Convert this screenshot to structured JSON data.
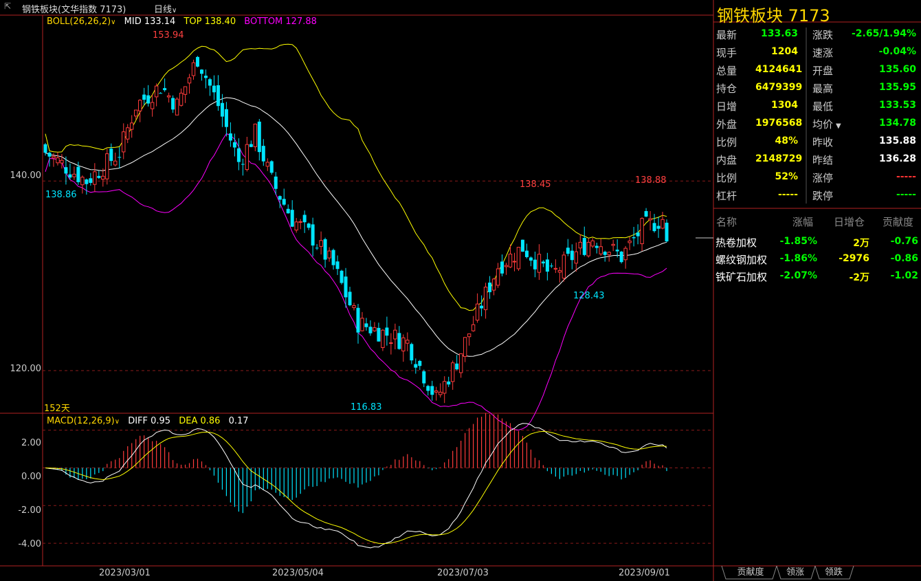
{
  "title_bar": {
    "menu_icon": "dropdown-icon",
    "name": "钢铁板块(文华指数 7173)",
    "period": "日线"
  },
  "main_indicator": {
    "name": "BOLL(26,26,2)",
    "mid": "MID 133.14",
    "top": "TOP 138.40",
    "bottom": "BOTTOM 127.88",
    "colors": {
      "mid": "#ffffff",
      "top": "#ffff00",
      "bottom": "#ff00ff"
    }
  },
  "sub_indicator": {
    "name": "MACD(12,26,9)",
    "diff": "DIFF 0.95",
    "dea": "DEA 0.86",
    "macd": "0.17"
  },
  "days_label": "152天",
  "chart_data": [
    {
      "type": "candlestick",
      "yticks": [
        "140.00",
        "120.00"
      ],
      "ylim": [
        115.5,
        157.5
      ],
      "xticks": [
        "2023/03/01",
        "2023/05/04",
        "2023/07/03",
        "2023/09/01"
      ],
      "annotations": [
        {
          "text": "153.94",
          "value": 153.94
        },
        {
          "text": "138.86",
          "value": 138.86
        },
        {
          "text": "116.83",
          "value": 116.83
        },
        {
          "text": "138.45",
          "value": 138.45
        },
        {
          "text": "128.43",
          "value": 128.43
        },
        {
          "text": "138.88",
          "value": 138.88
        }
      ],
      "last_close": 133.63
    },
    {
      "type": "bar",
      "yticks": [
        "2.00",
        "0.00",
        "-2.00",
        "-4.00"
      ],
      "ylim": [
        -5.2,
        2.9
      ]
    }
  ],
  "quote": {
    "title": "钢铁板块  7173",
    "left": [
      {
        "label": "最新",
        "value": "133.63",
        "color": "#00ff00"
      },
      {
        "label": "现手",
        "value": "1204",
        "color": "#ffff00"
      },
      {
        "label": "总量",
        "value": "4124641",
        "color": "#ffff00"
      },
      {
        "label": "持仓",
        "value": "6479399",
        "color": "#ffff00"
      },
      {
        "label": "日增",
        "value": "1304",
        "color": "#ffff00"
      },
      {
        "label": "外盘",
        "value": "1976568",
        "color": "#ffff00"
      },
      {
        "label": "比例",
        "value": "48%",
        "color": "#ffff00"
      },
      {
        "label": "内盘",
        "value": "2148729",
        "color": "#ffff00"
      },
      {
        "label": "比例",
        "value": "52%",
        "color": "#ffff00"
      },
      {
        "label": "杠杆",
        "value": "-----",
        "color": "#ffff00"
      }
    ],
    "right": [
      {
        "label": "涨跌",
        "value": "-2.65/1.94%",
        "color": "#00ff00"
      },
      {
        "label": "速涨",
        "value": "-0.04%",
        "color": "#00ff00"
      },
      {
        "label": "开盘",
        "value": "135.60",
        "color": "#00ff00"
      },
      {
        "label": "最高",
        "value": "135.95",
        "color": "#00ff00"
      },
      {
        "label": "最低",
        "value": "133.53",
        "color": "#00ff00"
      },
      {
        "label": "均价",
        "value": "134.78",
        "color": "#00ff00"
      },
      {
        "label": "昨收",
        "value": "135.88",
        "color": "#ffffff"
      },
      {
        "label": "昨结",
        "value": "136.28",
        "color": "#ffffff"
      },
      {
        "label": "涨停",
        "value": "-----",
        "color": "#ff3333"
      },
      {
        "label": "跌停",
        "value": "-----",
        "color": "#00ff00"
      }
    ]
  },
  "contrib": {
    "headers": [
      "名称",
      "涨幅",
      "日增仓",
      "贡献度"
    ],
    "rows": [
      {
        "name": "热卷加权",
        "change": "-1.85%",
        "oi": "2万",
        "contrib": "-0.76"
      },
      {
        "name": "螺纹钢加权",
        "change": "-1.86%",
        "oi": "-2976",
        "contrib": "-0.86"
      },
      {
        "name": "铁矿石加权",
        "change": "-2.07%",
        "oi": "-2万",
        "contrib": "-1.02"
      }
    ]
  },
  "tabs": [
    "贡献度",
    "领涨",
    "领跌"
  ]
}
